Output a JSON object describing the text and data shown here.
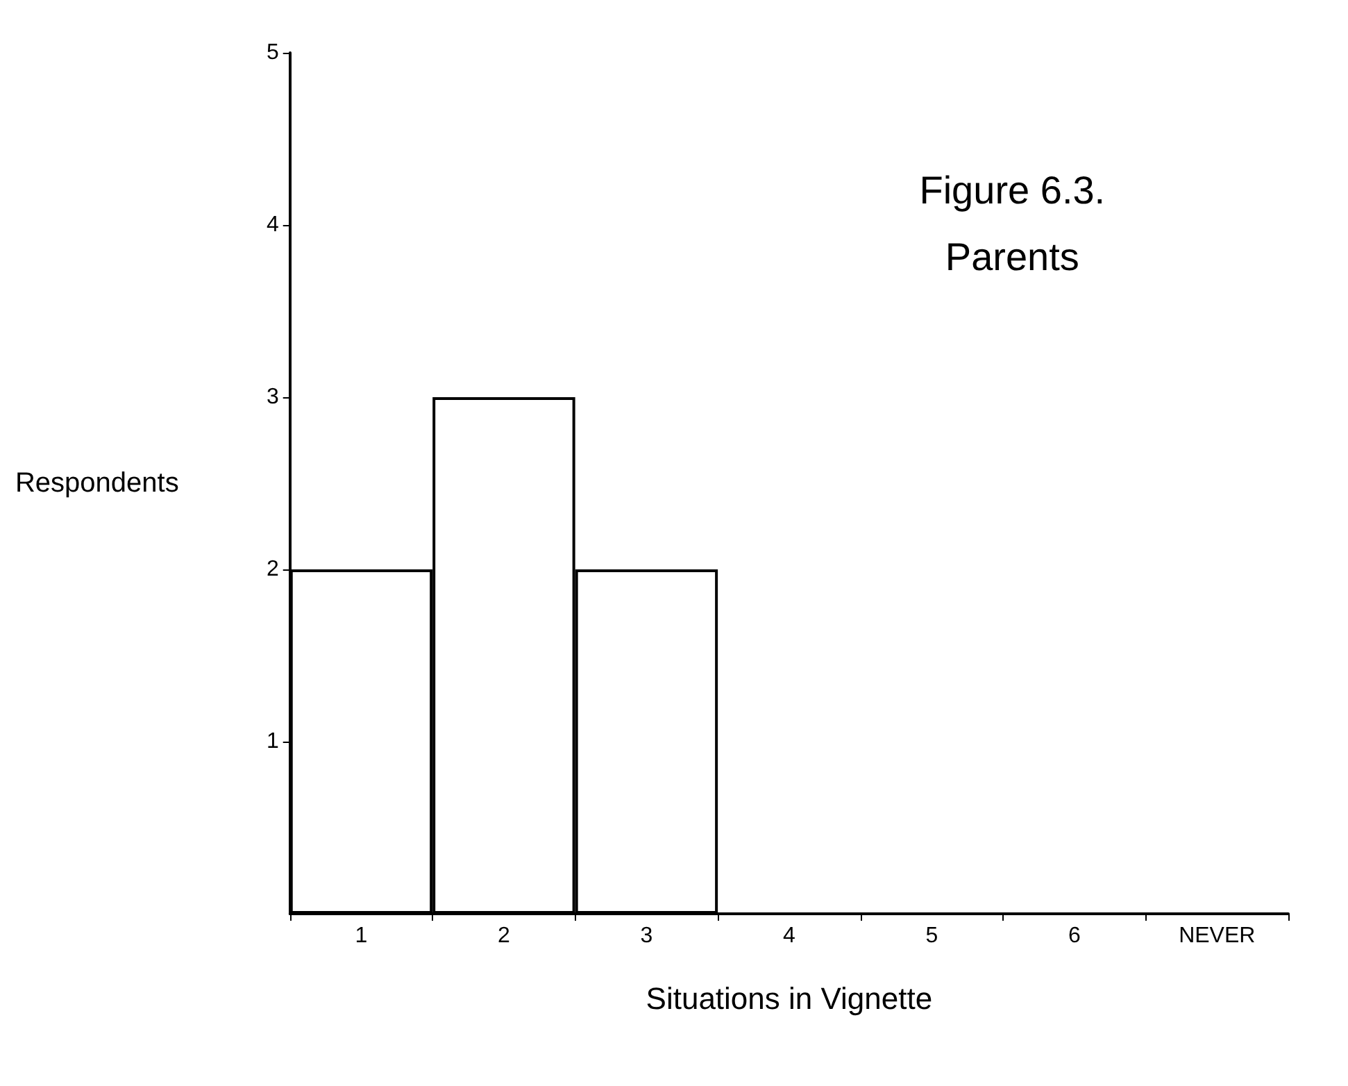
{
  "chart_data": {
    "type": "bar",
    "title": "Figure 6.3.",
    "subtitle": "Parents",
    "xlabel": "Situations in Vignette",
    "ylabel": "Respondents",
    "categories": [
      "1",
      "2",
      "3",
      "4",
      "5",
      "6",
      "NEVER"
    ],
    "values": [
      2,
      3,
      2,
      0,
      0,
      0,
      0
    ],
    "color": "#ffffff",
    "ylim": [
      0,
      5
    ],
    "yticks": [
      1,
      2,
      3,
      4,
      5
    ],
    "grid": false
  }
}
